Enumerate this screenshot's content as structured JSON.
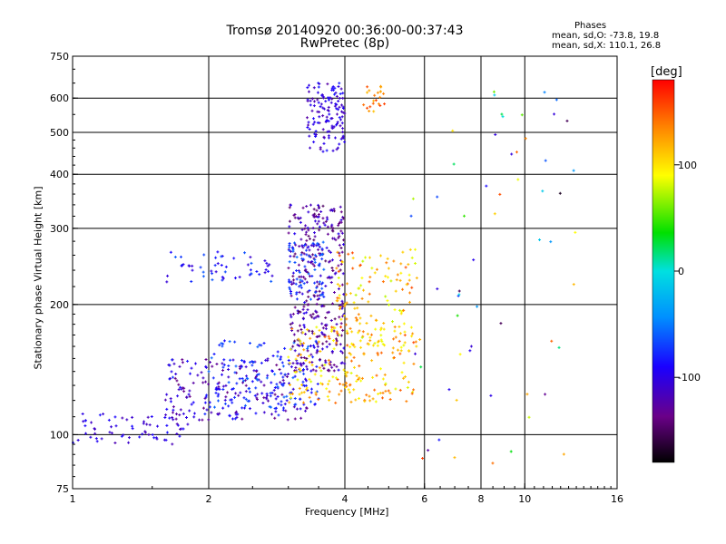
{
  "chart_data": {
    "type": "scatter",
    "title": "Tromsø 20140920 00:36:00-00:37:43",
    "subtitle": "RwPretec (8p)",
    "stats": {
      "heading": "Phases",
      "o_mode": "mean, sd,O: -73.8, 19.8",
      "x_mode": "mean, sd,X: 110.1, 26.8"
    },
    "xlabel": "Frequency [MHz]",
    "ylabel": "Stationary phase Virtual Height [km]",
    "x_scale": "log",
    "y_scale": "log",
    "xlim": [
      1,
      16
    ],
    "ylim": [
      75,
      750
    ],
    "x_ticks": [
      1,
      2,
      4,
      6,
      8,
      10,
      16
    ],
    "x_tick_labels": [
      "1",
      "2",
      "4",
      "6",
      "8",
      "10",
      "16"
    ],
    "y_ticks": [
      75,
      100,
      200,
      300,
      400,
      500,
      600,
      750
    ],
    "y_tick_labels": [
      "75",
      "100",
      "200",
      "300",
      "400",
      "500",
      "600",
      "750"
    ],
    "grid": true,
    "colorbar": {
      "label": "[deg]",
      "range": [
        -180,
        180
      ],
      "ticks": [
        100,
        0,
        -100
      ],
      "tick_labels": [
        "100",
        "0",
        "-100"
      ]
    },
    "clusters": [
      {
        "name": "o-trace-low",
        "x": [
          1,
          1.8
        ],
        "y": [
          95,
          112
        ],
        "phase": [
          -120,
          -85
        ],
        "n": 70
      },
      {
        "name": "o-trace-mid",
        "x": [
          1.6,
          3.3
        ],
        "y": [
          108,
          150
        ],
        "phase": [
          -140,
          -75
        ],
        "n": 230
      },
      {
        "name": "o-trace-upper",
        "x": [
          2.0,
          3.6
        ],
        "y": [
          115,
          165
        ],
        "phase": [
          -90,
          -55
        ],
        "n": 110
      },
      {
        "name": "f-layer-o",
        "x": [
          3.0,
          4.0
        ],
        "y": [
          140,
          340
        ],
        "phase": [
          -150,
          -95
        ],
        "n": 360
      },
      {
        "name": "f-layer-o-edge",
        "x": [
          3.0,
          3.6
        ],
        "y": [
          205,
          280
        ],
        "phase": [
          -80,
          -55
        ],
        "n": 70
      },
      {
        "name": "f-layer-x",
        "x": [
          3.0,
          5.8
        ],
        "y": [
          118,
          178
        ],
        "phase": [
          80,
          150
        ],
        "n": 200
      },
      {
        "name": "f-layer-x-spread",
        "x": [
          3.8,
          5.8
        ],
        "y": [
          160,
          270
        ],
        "phase": [
          75,
          160
        ],
        "n": 130
      },
      {
        "name": "spread-e-patch",
        "x": [
          1.6,
          2.8
        ],
        "y": [
          225,
          265
        ],
        "phase": [
          -110,
          -60
        ],
        "n": 55
      },
      {
        "name": "upper-echo-o",
        "x": [
          3.3,
          4.0
        ],
        "y": [
          450,
          650
        ],
        "phase": [
          -125,
          -80
        ],
        "n": 130
      },
      {
        "name": "upper-echo-x",
        "x": [
          4.4,
          4.9
        ],
        "y": [
          555,
          640
        ],
        "phase": [
          110,
          160
        ],
        "n": 22
      },
      {
        "name": "scattered-high-freq",
        "x": [
          5.5,
          13
        ],
        "y": [
          80,
          650
        ],
        "phase": [
          -170,
          160
        ],
        "n": 60
      }
    ]
  }
}
